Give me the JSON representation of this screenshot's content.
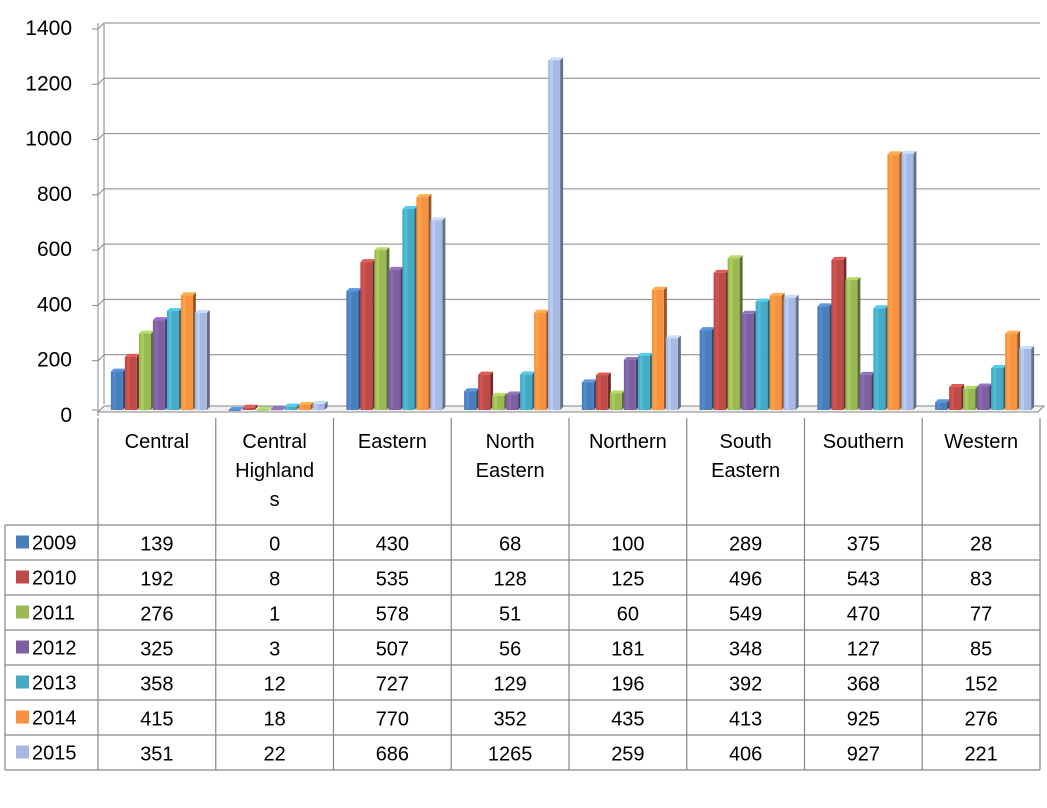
{
  "chart_data": {
    "type": "bar",
    "title": "",
    "xlabel": "",
    "ylabel": "",
    "ylim": [
      0,
      1400
    ],
    "yticks": [
      0,
      200,
      400,
      600,
      800,
      1000,
      1200,
      1400
    ],
    "grid": true,
    "legend": "data-table",
    "categories": [
      "Central",
      "Central Highlands",
      "Eastern",
      "North Eastern",
      "Northern",
      "South Eastern",
      "Southern",
      "Western"
    ],
    "category_label_lines": [
      [
        "Central"
      ],
      [
        "Central",
        "Highland",
        "s"
      ],
      [
        "Eastern"
      ],
      [
        "North",
        "Eastern"
      ],
      [
        "Northern"
      ],
      [
        "South",
        "Eastern"
      ],
      [
        "Southern"
      ],
      [
        "Western"
      ]
    ],
    "series": [
      {
        "name": "2009",
        "color": "#4A7EBB",
        "values": [
          139,
          0,
          430,
          68,
          100,
          289,
          375,
          28
        ]
      },
      {
        "name": "2010",
        "color": "#BE4B48",
        "values": [
          192,
          8,
          535,
          128,
          125,
          496,
          543,
          83
        ]
      },
      {
        "name": "2011",
        "color": "#98B954",
        "values": [
          276,
          1,
          578,
          51,
          60,
          549,
          470,
          77
        ]
      },
      {
        "name": "2012",
        "color": "#7D60A0",
        "values": [
          325,
          3,
          507,
          56,
          181,
          348,
          127,
          85
        ]
      },
      {
        "name": "2013",
        "color": "#46AAC5",
        "values": [
          358,
          12,
          727,
          129,
          196,
          392,
          368,
          152
        ]
      },
      {
        "name": "2014",
        "color": "#F69240",
        "values": [
          415,
          18,
          770,
          352,
          435,
          413,
          925,
          276
        ]
      },
      {
        "name": "2015",
        "color": "#A7B9E3",
        "values": [
          351,
          22,
          686,
          1265,
          259,
          406,
          927,
          221
        ]
      }
    ]
  }
}
